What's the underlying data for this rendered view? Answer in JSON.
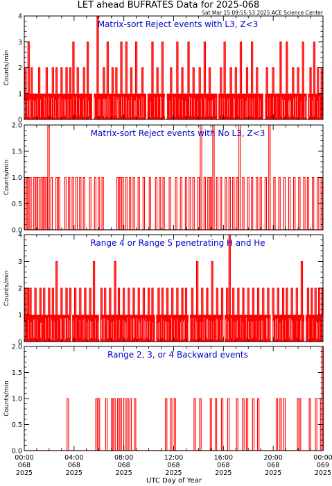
{
  "page": {
    "title": "LET ahead BUFRATES Data for 2025-068",
    "timestamp": "Sat Mar 15 09:55:53 2025 ACE Science Center",
    "xlabel": "UTC Day of Year"
  },
  "colors": {
    "trace": "#ff0000",
    "panel_title": "#0000cc",
    "axes": "#000000"
  },
  "x_ticks": [
    {
      "h": 0,
      "time": "00:00",
      "doy": "068",
      "year": "2025"
    },
    {
      "h": 4,
      "time": "04:00",
      "doy": "068",
      "year": "2025"
    },
    {
      "h": 8,
      "time": "08:00",
      "doy": "068",
      "year": "2025"
    },
    {
      "h": 12,
      "time": "12:00",
      "doy": "068",
      "year": "2025"
    },
    {
      "h": 16,
      "time": "16:00",
      "doy": "068",
      "year": "2025"
    },
    {
      "h": 20,
      "time": "20:00",
      "doy": "068",
      "year": "2025"
    },
    {
      "h": 24,
      "time": "00:00",
      "doy": "069",
      "year": "2025"
    }
  ],
  "chart_data": [
    {
      "type": "line",
      "title": "Matrix-sort Reject events with L3, Z<3",
      "ylabel": "Counts/min",
      "xlim": [
        0,
        24
      ],
      "ylim": [
        0,
        4
      ],
      "yticks": [
        "0",
        "1",
        "2",
        "3",
        "4"
      ],
      "ytick_values": [
        0,
        1,
        2,
        3,
        4
      ],
      "baseline": 1,
      "gaps": [
        [
          5.45,
          5.6
        ],
        [
          9.8,
          9.9
        ],
        [
          11.3,
          11.45
        ],
        [
          15.5,
          15.6
        ],
        [
          19.2,
          19.35
        ],
        [
          22.7,
          22.8
        ]
      ],
      "spikes": [
        [
          0.1,
          2
        ],
        [
          0.35,
          3
        ],
        [
          0.6,
          2
        ],
        [
          1.2,
          2
        ],
        [
          1.8,
          2
        ],
        [
          2.3,
          2
        ],
        [
          2.6,
          2
        ],
        [
          3.0,
          2
        ],
        [
          3.4,
          2
        ],
        [
          3.7,
          2
        ],
        [
          3.95,
          3
        ],
        [
          4.3,
          2
        ],
        [
          4.8,
          2
        ],
        [
          5.1,
          3
        ],
        [
          5.9,
          4
        ],
        [
          6.4,
          2
        ],
        [
          6.7,
          3
        ],
        [
          7.1,
          2
        ],
        [
          7.4,
          2
        ],
        [
          7.8,
          3
        ],
        [
          8.2,
          3
        ],
        [
          8.6,
          2
        ],
        [
          9.0,
          3
        ],
        [
          9.5,
          2
        ],
        [
          10.3,
          3
        ],
        [
          10.7,
          2
        ],
        [
          11.1,
          3
        ],
        [
          11.8,
          2
        ],
        [
          12.3,
          3
        ],
        [
          12.7,
          2
        ],
        [
          13.2,
          3
        ],
        [
          13.6,
          2
        ],
        [
          14.1,
          2
        ],
        [
          14.5,
          3
        ],
        [
          14.9,
          2
        ],
        [
          15.8,
          2
        ],
        [
          16.1,
          3
        ],
        [
          16.6,
          2
        ],
        [
          17.0,
          2
        ],
        [
          17.4,
          3
        ],
        [
          17.9,
          2
        ],
        [
          18.3,
          3
        ],
        [
          18.7,
          2
        ],
        [
          19.5,
          2
        ],
        [
          20.0,
          2
        ],
        [
          20.6,
          3
        ],
        [
          21.1,
          3
        ],
        [
          21.6,
          2
        ],
        [
          22.0,
          2
        ],
        [
          22.4,
          3
        ],
        [
          23.0,
          2
        ],
        [
          23.3,
          3
        ],
        [
          23.6,
          2
        ],
        [
          23.9,
          2
        ]
      ]
    },
    {
      "type": "line",
      "title": "Matrix-sort Reject events with No L3, Z<3",
      "ylabel": "Counts/min",
      "xlim": [
        0,
        24
      ],
      "ylim": [
        0,
        2
      ],
      "yticks": [
        "0.0",
        "0.5",
        "1.0",
        "1.5",
        "2.0"
      ],
      "ytick_values": [
        0,
        0.5,
        1,
        1.5,
        2
      ],
      "baseline": 0,
      "gaps": [],
      "spikes": [
        [
          0.1,
          1
        ],
        [
          0.3,
          1
        ],
        [
          0.5,
          1
        ],
        [
          0.8,
          1
        ],
        [
          1.0,
          1
        ],
        [
          1.15,
          1
        ],
        [
          1.4,
          1
        ],
        [
          1.6,
          1
        ],
        [
          1.8,
          1
        ],
        [
          1.95,
          2
        ],
        [
          2.2,
          1
        ],
        [
          2.6,
          1
        ],
        [
          2.8,
          1
        ],
        [
          3.3,
          1
        ],
        [
          3.6,
          1
        ],
        [
          3.9,
          1
        ],
        [
          4.2,
          1
        ],
        [
          4.5,
          1
        ],
        [
          4.8,
          1
        ],
        [
          5.3,
          1
        ],
        [
          5.7,
          1
        ],
        [
          6.0,
          1
        ],
        [
          6.3,
          1
        ],
        [
          7.5,
          1
        ],
        [
          7.7,
          1
        ],
        [
          7.9,
          1
        ],
        [
          8.2,
          1
        ],
        [
          8.5,
          1
        ],
        [
          8.8,
          1
        ],
        [
          9.2,
          1
        ],
        [
          9.6,
          1
        ],
        [
          10.1,
          1
        ],
        [
          10.6,
          1
        ],
        [
          10.9,
          1
        ],
        [
          11.2,
          1
        ],
        [
          11.7,
          1
        ],
        [
          12.2,
          1
        ],
        [
          12.6,
          1
        ],
        [
          13.0,
          1
        ],
        [
          13.3,
          1
        ],
        [
          13.6,
          1
        ],
        [
          14.0,
          1
        ],
        [
          14.2,
          2
        ],
        [
          14.5,
          1
        ],
        [
          14.8,
          1
        ],
        [
          15.0,
          1
        ],
        [
          15.2,
          2
        ],
        [
          15.5,
          1
        ],
        [
          15.8,
          1
        ],
        [
          16.2,
          1
        ],
        [
          16.5,
          1
        ],
        [
          16.8,
          1
        ],
        [
          17.1,
          1
        ],
        [
          17.3,
          2
        ],
        [
          17.6,
          1
        ],
        [
          18.0,
          1
        ],
        [
          18.3,
          1
        ],
        [
          18.7,
          1
        ],
        [
          19.0,
          1
        ],
        [
          19.4,
          1
        ],
        [
          19.7,
          2
        ],
        [
          20.1,
          1
        ],
        [
          20.5,
          1
        ],
        [
          20.9,
          1
        ],
        [
          21.3,
          1
        ],
        [
          21.7,
          1
        ],
        [
          22.1,
          1
        ],
        [
          22.5,
          1
        ],
        [
          22.8,
          1
        ],
        [
          23.2,
          1
        ],
        [
          23.6,
          1
        ],
        [
          23.9,
          1
        ]
      ]
    },
    {
      "type": "line",
      "title": "Range 4 or Range 5 penetrating H and He",
      "ylabel": "Counts/min",
      "xlim": [
        0,
        24
      ],
      "ylim": [
        0,
        4
      ],
      "yticks": [
        "0",
        "1",
        "2",
        "3",
        "4"
      ],
      "ytick_values": [
        0,
        1,
        2,
        3,
        4
      ],
      "baseline": 1,
      "gaps": [
        [
          3.75,
          3.85
        ],
        [
          6.0,
          6.1
        ],
        [
          10.5,
          10.6
        ],
        [
          13.2,
          13.3
        ],
        [
          16.0,
          16.1
        ],
        [
          19.8,
          19.95
        ],
        [
          22.5,
          22.6
        ]
      ],
      "spikes": [
        [
          0.1,
          2
        ],
        [
          0.3,
          2
        ],
        [
          0.5,
          2
        ],
        [
          0.9,
          2
        ],
        [
          1.3,
          2
        ],
        [
          1.6,
          2
        ],
        [
          2.0,
          2
        ],
        [
          2.3,
          2
        ],
        [
          2.6,
          3
        ],
        [
          3.0,
          2
        ],
        [
          3.4,
          2
        ],
        [
          3.7,
          2
        ],
        [
          4.1,
          2
        ],
        [
          4.5,
          2
        ],
        [
          4.9,
          2
        ],
        [
          5.3,
          2
        ],
        [
          5.6,
          3
        ],
        [
          6.2,
          2
        ],
        [
          6.5,
          2
        ],
        [
          6.9,
          2
        ],
        [
          7.3,
          3
        ],
        [
          7.6,
          2
        ],
        [
          8.0,
          2
        ],
        [
          8.4,
          2
        ],
        [
          8.8,
          2
        ],
        [
          9.2,
          2
        ],
        [
          9.6,
          2
        ],
        [
          10.0,
          2
        ],
        [
          10.3,
          2
        ],
        [
          10.8,
          2
        ],
        [
          11.1,
          2
        ],
        [
          11.5,
          2
        ],
        [
          11.9,
          2
        ],
        [
          12.3,
          2
        ],
        [
          12.7,
          2
        ],
        [
          13.0,
          2
        ],
        [
          13.5,
          2
        ],
        [
          13.9,
          3
        ],
        [
          14.3,
          2
        ],
        [
          14.7,
          2
        ],
        [
          15.1,
          3
        ],
        [
          15.5,
          2
        ],
        [
          15.9,
          2
        ],
        [
          16.3,
          2
        ],
        [
          16.5,
          4
        ],
        [
          16.8,
          2
        ],
        [
          17.2,
          2
        ],
        [
          17.6,
          2
        ],
        [
          18.0,
          2
        ],
        [
          18.4,
          2
        ],
        [
          18.8,
          2
        ],
        [
          19.2,
          2
        ],
        [
          19.6,
          2
        ],
        [
          20.0,
          2
        ],
        [
          20.4,
          2
        ],
        [
          20.8,
          2
        ],
        [
          21.1,
          2
        ],
        [
          21.5,
          2
        ],
        [
          21.9,
          2
        ],
        [
          22.3,
          3
        ],
        [
          22.8,
          2
        ],
        [
          23.1,
          2
        ],
        [
          23.4,
          2
        ],
        [
          23.7,
          2
        ],
        [
          23.95,
          2
        ]
      ]
    },
    {
      "type": "line",
      "title": "Range 2, 3, or 4 Backward events",
      "ylabel": "Counts/min",
      "xlim": [
        0,
        24
      ],
      "ylim": [
        0,
        2
      ],
      "yticks": [
        "0.0",
        "0.5",
        "1.0",
        "1.5",
        "2.0"
      ],
      "ytick_values": [
        0,
        0.5,
        1,
        1.5,
        2
      ],
      "baseline": 0,
      "gaps": [],
      "spikes": [
        [
          3.5,
          1
        ],
        [
          5.8,
          1
        ],
        [
          6.0,
          1
        ],
        [
          6.6,
          1
        ],
        [
          7.05,
          1
        ],
        [
          7.25,
          1
        ],
        [
          7.55,
          1
        ],
        [
          7.75,
          1
        ],
        [
          8.05,
          1
        ],
        [
          8.3,
          1
        ],
        [
          8.55,
          1
        ],
        [
          8.9,
          1
        ],
        [
          11.4,
          1
        ],
        [
          11.8,
          1
        ],
        [
          12.1,
          1
        ],
        [
          13.7,
          1
        ],
        [
          14.15,
          1
        ],
        [
          15.0,
          1
        ],
        [
          15.4,
          1
        ],
        [
          15.9,
          1
        ],
        [
          16.4,
          1
        ],
        [
          17.1,
          1
        ],
        [
          17.6,
          1
        ],
        [
          17.9,
          1
        ],
        [
          18.4,
          1
        ],
        [
          18.8,
          1
        ],
        [
          20.3,
          1
        ],
        [
          20.6,
          1
        ],
        [
          20.9,
          1
        ],
        [
          22.0,
          1
        ],
        [
          22.15,
          1
        ],
        [
          22.95,
          1
        ],
        [
          23.45,
          1
        ],
        [
          23.85,
          1
        ],
        [
          23.97,
          2
        ]
      ]
    }
  ]
}
